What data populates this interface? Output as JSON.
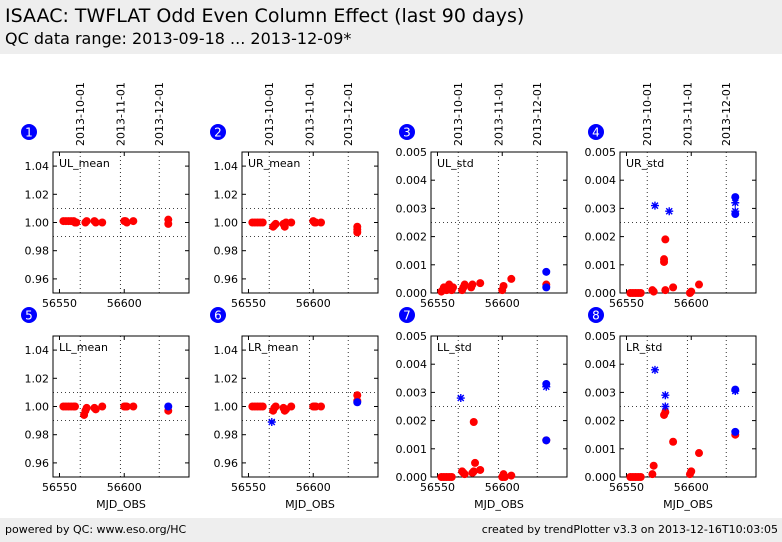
{
  "header": {
    "title": "ISAAC: TWFLAT Odd Even Column Effect (last 90 days)",
    "subtitle": "QC data range: 2013-09-18 ... 2013-12-09*"
  },
  "footer": {
    "left": "powered by QC: www.eso.org/HC",
    "right": "created by trendPlotter v3.3 on 2013-12-16T10:03:05"
  },
  "colors": {
    "red": "#ff0000",
    "blue": "#0000ff",
    "badge": "#0000ff"
  },
  "date_axis": {
    "labels": [
      "2013-10-01",
      "2013-11-01",
      "2013-12-01"
    ],
    "mjd": [
      56566,
      56597,
      56627
    ]
  },
  "chart_data": [
    {
      "type": "scatter",
      "badge": "1",
      "label": "UL_mean",
      "xlim": [
        56545,
        56650
      ],
      "ylim": [
        0.95,
        1.05
      ],
      "xticks": [
        56550,
        56600
      ],
      "xticklabels": [
        "56550",
        "56600"
      ],
      "yticks": [
        0.96,
        0.98,
        1.0,
        1.02,
        1.04
      ],
      "yticklabels": [
        "0.96",
        "0.98",
        "1.00",
        "1.02",
        "1.04"
      ],
      "hlines": [
        1.01,
        0.99
      ],
      "xlabel": "",
      "series": [
        {
          "color": "red",
          "marker": "circle",
          "x": [
            56553,
            56555,
            56557,
            56559,
            56561,
            56562,
            56563,
            56570,
            56571,
            56577,
            56578,
            56583,
            56600,
            56601,
            56602,
            56607,
            56634,
            56634
          ],
          "y": [
            1.001,
            1.001,
            1.001,
            1.001,
            1.001,
            1.0,
            1.0,
            1.0,
            1.001,
            1.001,
            1.0,
            1.0,
            1.001,
            1.001,
            1.0,
            1.001,
            1.002,
            0.999
          ]
        }
      ]
    },
    {
      "type": "scatter",
      "badge": "2",
      "label": "UR_mean",
      "xlim": [
        56545,
        56650
      ],
      "ylim": [
        0.95,
        1.05
      ],
      "xticks": [
        56550,
        56600
      ],
      "xticklabels": [
        "56550",
        "56600"
      ],
      "yticks": [
        0.96,
        0.98,
        1.0,
        1.02,
        1.04
      ],
      "yticklabels": [
        "0.96",
        "0.98",
        "1.00",
        "1.02",
        "1.04"
      ],
      "hlines": [
        1.01,
        0.99
      ],
      "xlabel": "",
      "series": [
        {
          "color": "red",
          "marker": "circle",
          "x": [
            56553,
            56555,
            56557,
            56559,
            56561,
            56569,
            56570,
            56571,
            56577,
            56578,
            56579,
            56583,
            56600,
            56601,
            56602,
            56606,
            56634,
            56634,
            56634
          ],
          "y": [
            1.0,
            1.0,
            1.0,
            1.0,
            1.0,
            0.997,
            0.998,
            0.999,
            0.999,
            0.997,
            1.0,
            1.0,
            1.001,
            1.0,
            1.0,
            1.0,
            0.997,
            0.995,
            0.993
          ]
        }
      ]
    },
    {
      "type": "scatter",
      "badge": "3",
      "label": "UL_std",
      "xlim": [
        56545,
        56650
      ],
      "ylim": [
        0,
        0.005
      ],
      "xticks": [
        56550,
        56600
      ],
      "xticklabels": [
        "56550",
        "56600"
      ],
      "yticks": [
        0.0,
        0.001,
        0.002,
        0.003,
        0.004,
        0.005
      ],
      "yticklabels": [
        "0.000",
        "0.001",
        "0.002",
        "0.003",
        "0.004",
        "0.005"
      ],
      "hlines": [
        0.0025
      ],
      "xlabel": "",
      "series": [
        {
          "color": "red",
          "marker": "circle",
          "x": [
            56553,
            56554,
            56555,
            56556,
            56557,
            56558,
            56559,
            56561,
            56562,
            56569,
            56570,
            56571,
            56576,
            56577,
            56583,
            56600,
            56601,
            56607,
            56634
          ],
          "y": [
            5e-05,
            0.0001,
            0.0002,
            0.00015,
            0.0001,
            0.0002,
            0.0003,
            0.0001,
            0.0002,
            0.0001,
            0.0002,
            0.0003,
            0.0002,
            0.0003,
            0.00035,
            0.0001,
            0.00025,
            0.0005,
            0.0003
          ]
        },
        {
          "color": "blue",
          "marker": "circle",
          "x": [
            56634,
            56634
          ],
          "y": [
            0.00075,
            0.0002
          ]
        }
      ]
    },
    {
      "type": "scatter",
      "badge": "4",
      "label": "UR_std",
      "xlim": [
        56545,
        56650
      ],
      "ylim": [
        0,
        0.005
      ],
      "xticks": [
        56550,
        56600
      ],
      "xticklabels": [
        "56550",
        "56600"
      ],
      "yticks": [
        0.0,
        0.001,
        0.002,
        0.003,
        0.004,
        0.005
      ],
      "yticklabels": [
        "0.000",
        "0.001",
        "0.002",
        "0.003",
        "0.004",
        "0.005"
      ],
      "hlines": [
        0.0025
      ],
      "xlabel": "",
      "series": [
        {
          "color": "red",
          "marker": "circle",
          "x": [
            56553,
            56555,
            56557,
            56559,
            56561,
            56570,
            56571,
            56579,
            56579,
            56580,
            56580,
            56586,
            56599,
            56600,
            56606
          ],
          "y": [
            0.0,
            0.0,
            0.0,
            0.0,
            0.0,
            0.0001,
            5e-05,
            0.0011,
            0.0012,
            0.0019,
            0.0001,
            0.0002,
            0.0,
            5e-05,
            0.0003
          ]
        },
        {
          "color": "blue",
          "marker": "circle",
          "x": [
            56634,
            56634
          ],
          "y": [
            0.0034,
            0.0028
          ]
        },
        {
          "color": "blue",
          "marker": "star",
          "x": [
            56572,
            56583,
            56634,
            56634
          ],
          "y": [
            0.0031,
            0.0029,
            0.0032,
            0.0029
          ]
        }
      ]
    },
    {
      "type": "scatter",
      "badge": "5",
      "label": "LL_mean",
      "xlim": [
        56545,
        56650
      ],
      "ylim": [
        0.95,
        1.05
      ],
      "xticks": [
        56550,
        56600
      ],
      "xticklabels": [
        "56550",
        "56600"
      ],
      "yticks": [
        0.96,
        0.98,
        1.0,
        1.02,
        1.04
      ],
      "yticklabels": [
        "0.96",
        "0.98",
        "1.00",
        "1.02",
        "1.04"
      ],
      "hlines": [
        1.01,
        0.99
      ],
      "xlabel": "MJD_OBS",
      "series": [
        {
          "color": "red",
          "marker": "circle",
          "x": [
            56553,
            56555,
            56557,
            56559,
            56561,
            56562,
            56569,
            56570,
            56571,
            56577,
            56578,
            56583,
            56600,
            56601,
            56602,
            56607,
            56634
          ],
          "y": [
            1.0,
            1.0,
            1.0,
            1.0,
            1.0,
            1.0,
            0.994,
            0.997,
            0.999,
            0.999,
            0.998,
            1.0,
            1.0,
            1.0,
            1.0,
            1.0,
            0.997
          ]
        },
        {
          "color": "blue",
          "marker": "circle",
          "x": [
            56634
          ],
          "y": [
            1.0
          ]
        }
      ]
    },
    {
      "type": "scatter",
      "badge": "6",
      "label": "LR_mean",
      "xlim": [
        56545,
        56650
      ],
      "ylim": [
        0.95,
        1.05
      ],
      "xticks": [
        56550,
        56600
      ],
      "xticklabels": [
        "56550",
        "56600"
      ],
      "yticks": [
        0.96,
        0.98,
        1.0,
        1.02,
        1.04
      ],
      "yticklabels": [
        "0.96",
        "0.98",
        "1.00",
        "1.02",
        "1.04"
      ],
      "hlines": [
        1.01,
        0.99
      ],
      "xlabel": "MJD_OBS",
      "series": [
        {
          "color": "red",
          "marker": "circle",
          "x": [
            56553,
            56555,
            56557,
            56559,
            56561,
            56569,
            56570,
            56571,
            56577,
            56578,
            56579,
            56583,
            56600,
            56601,
            56602,
            56606,
            56634,
            56634
          ],
          "y": [
            1.0,
            1.0,
            1.0,
            1.0,
            1.0,
            0.997,
            0.999,
            1.0,
            0.999,
            0.997,
            0.998,
            1.0,
            1.0,
            1.0,
            1.0,
            1.0,
            1.008,
            1.004
          ]
        },
        {
          "color": "blue",
          "marker": "circle",
          "x": [
            56634
          ],
          "y": [
            1.003
          ]
        },
        {
          "color": "blue",
          "marker": "star",
          "x": [
            56568
          ],
          "y": [
            0.989
          ]
        }
      ]
    },
    {
      "type": "scatter",
      "badge": "7",
      "label": "LL_std",
      "xlim": [
        56545,
        56650
      ],
      "ylim": [
        0,
        0.005
      ],
      "xticks": [
        56550,
        56600
      ],
      "xticklabels": [
        "56550",
        "56600"
      ],
      "yticks": [
        0.0,
        0.001,
        0.002,
        0.003,
        0.004,
        0.005
      ],
      "yticklabels": [
        "0.000",
        "0.001",
        "0.002",
        "0.003",
        "0.004",
        "0.005"
      ],
      "hlines": [
        0.0025
      ],
      "xlabel": "MJD_OBS",
      "series": [
        {
          "color": "red",
          "marker": "circle",
          "x": [
            56553,
            56555,
            56557,
            56559,
            56561,
            56569,
            56570,
            56571,
            56577,
            56578,
            56579,
            56583,
            56600,
            56601,
            56602,
            56607,
            56634
          ],
          "y": [
            0.0,
            0.0,
            0.0,
            0.0,
            0.0,
            0.0002,
            0.00015,
            0.0001,
            0.00015,
            0.0002,
            0.0005,
            0.00025,
            0.0,
            0.0001,
            0.0,
            5e-05,
            0.0013
          ]
        },
        {
          "color": "red",
          "marker": "circle",
          "x": [
            56578
          ],
          "y": [
            0.00195
          ]
        },
        {
          "color": "blue",
          "marker": "circle",
          "x": [
            56634,
            56634
          ],
          "y": [
            0.0033,
            0.0013
          ]
        },
        {
          "color": "blue",
          "marker": "star",
          "x": [
            56568,
            56634
          ],
          "y": [
            0.0028,
            0.0032
          ]
        }
      ]
    },
    {
      "type": "scatter",
      "badge": "8",
      "label": "LR_std",
      "xlim": [
        56545,
        56650
      ],
      "ylim": [
        0,
        0.005
      ],
      "xticks": [
        56550,
        56600
      ],
      "xticklabels": [
        "56550",
        "56600"
      ],
      "yticks": [
        0.0,
        0.001,
        0.002,
        0.003,
        0.004,
        0.005
      ],
      "yticklabels": [
        "0.000",
        "0.001",
        "0.002",
        "0.003",
        "0.004",
        "0.005"
      ],
      "hlines": [
        0.0025
      ],
      "xlabel": "MJD_OBS",
      "series": [
        {
          "color": "red",
          "marker": "circle",
          "x": [
            56553,
            56555,
            56557,
            56559,
            56561,
            56570,
            56571,
            56579,
            56580,
            56586,
            56599,
            56600,
            56606,
            56634
          ],
          "y": [
            0.0,
            0.0,
            0.0,
            0.0,
            0.0,
            0.0001,
            0.0004,
            0.0022,
            0.0023,
            0.00125,
            0.0001,
            0.0002,
            0.00085,
            0.0015
          ]
        },
        {
          "color": "blue",
          "marker": "circle",
          "x": [
            56634,
            56634
          ],
          "y": [
            0.0031,
            0.0016
          ]
        },
        {
          "color": "blue",
          "marker": "star",
          "x": [
            56572,
            56580,
            56580,
            56634
          ],
          "y": [
            0.0038,
            0.0029,
            0.0025,
            0.00305
          ]
        }
      ]
    }
  ]
}
